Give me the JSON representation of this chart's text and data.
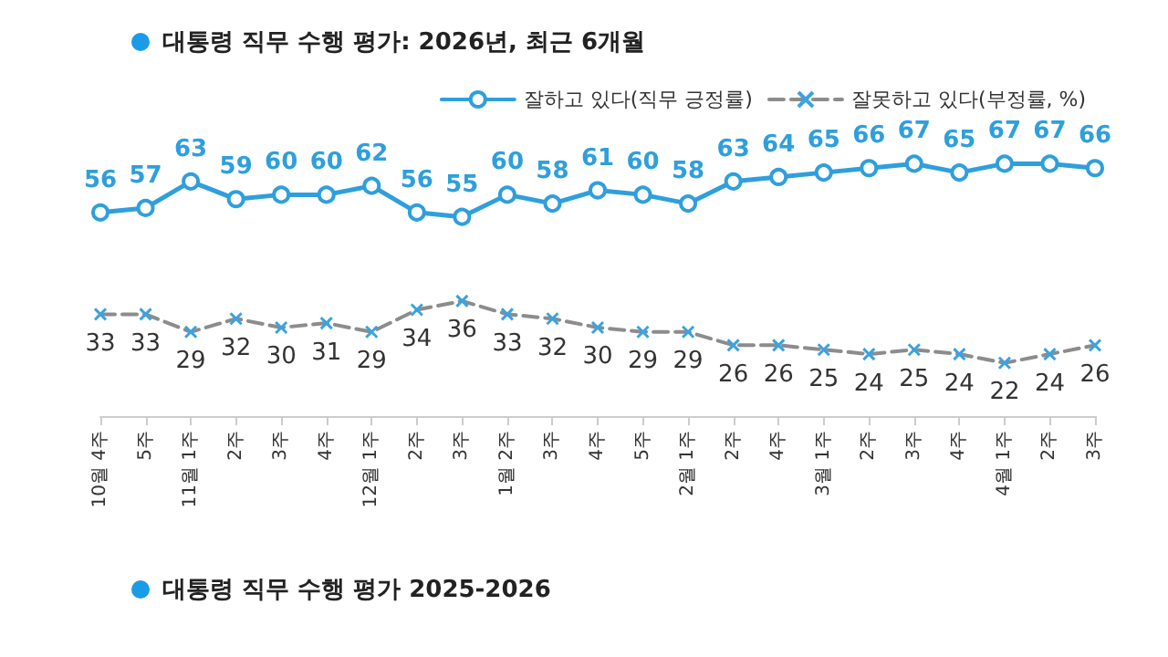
{
  "chart_data": {
    "type": "line",
    "title": "대통령 직무 수행 평가: 2026년, 최근 6개월",
    "categories": [
      "10월 4주",
      "5주",
      "11월 1주",
      "2주",
      "3주",
      "4주",
      "12월 1주",
      "2주",
      "3주",
      "1월 2주",
      "3주",
      "4주",
      "5주",
      "2월 1주",
      "2주",
      "4주",
      "3월 1주",
      "2주",
      "3주",
      "4주",
      "4월 1주",
      "2주",
      "3주"
    ],
    "series": [
      {
        "name": "잘하고 있다(직무 긍정률)",
        "color": "#2f9fdc",
        "marker": "circle",
        "line_style": "solid",
        "values": [
          56,
          57,
          63,
          59,
          60,
          60,
          62,
          56,
          55,
          60,
          58,
          61,
          60,
          58,
          63,
          64,
          65,
          66,
          67,
          65,
          67,
          67,
          66
        ]
      },
      {
        "name": "잘못하고 있다(부정률, %)",
        "color": "#8c8c8c",
        "marker": "cross",
        "line_style": "dashed",
        "values": [
          33,
          33,
          29,
          32,
          30,
          31,
          29,
          34,
          36,
          33,
          32,
          30,
          29,
          29,
          26,
          26,
          25,
          24,
          25,
          24,
          22,
          24,
          26
        ]
      }
    ],
    "data_labels": true,
    "grid": false,
    "legend": "top right",
    "tick_labels": "x",
    "annotations": [
      "대통령 직무 수행 평가 2025-2026"
    ]
  }
}
